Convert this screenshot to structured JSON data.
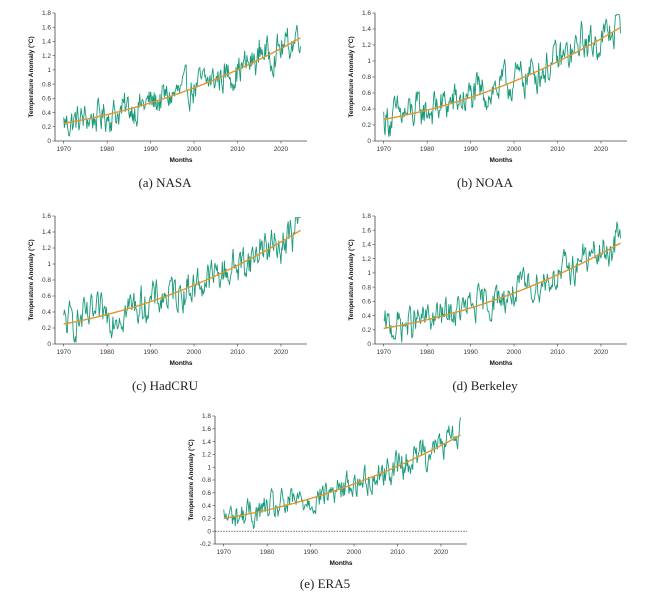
{
  "chart_data": [
    {
      "type": "line",
      "caption": "(a) NASA",
      "xlabel": "Months",
      "ylabel": "Temperature Anomaly (°C)",
      "xlim": [
        1968,
        2026
      ],
      "ylim": [
        0,
        1.8
      ],
      "xticks": [
        "1970",
        "1980",
        "1990",
        "2000",
        "2010",
        "2020"
      ],
      "yticks": [
        "0",
        "0.2",
        "0.4",
        "0.6",
        "0.8",
        "1",
        "1.2",
        "1.4",
        "1.6",
        "1.8"
      ],
      "start_value": 0.25,
      "end_value": 1.45,
      "colors": {
        "data": "#1a9a7a",
        "trend": "#e0962e"
      }
    },
    {
      "type": "line",
      "caption": "(b) NOAA",
      "xlabel": "Months",
      "ylabel": "Temperature Anomaly (°C)",
      "xlim": [
        1968,
        2026
      ],
      "ylim": [
        0,
        1.6
      ],
      "xticks": [
        "1970",
        "1980",
        "1990",
        "2000",
        "2010",
        "2020"
      ],
      "yticks": [
        "0",
        "0.2",
        "0.4",
        "0.6",
        "0.8",
        "1",
        "1.2",
        "1.4",
        "1.6"
      ],
      "start_value": 0.27,
      "end_value": 1.42,
      "colors": {
        "data": "#1a9a7a",
        "trend": "#e0962e"
      }
    },
    {
      "type": "line",
      "caption": "(c) HadCRU",
      "xlabel": "Months",
      "ylabel": "Temperature Anomaly (°C)",
      "xlim": [
        1968,
        2026
      ],
      "ylim": [
        0,
        1.6
      ],
      "xticks": [
        "1970",
        "1980",
        "1990",
        "2000",
        "2010",
        "2020"
      ],
      "yticks": [
        "0",
        "0.2",
        "0.4",
        "0.6",
        "0.8",
        "1",
        "1.2",
        "1.4",
        "1.6"
      ],
      "start_value": 0.25,
      "end_value": 1.42,
      "colors": {
        "data": "#1a9a7a",
        "trend": "#e0962e"
      }
    },
    {
      "type": "line",
      "caption": "(d) Berkeley",
      "xlabel": "Months",
      "ylabel": "Temperature Anomaly (°C)",
      "xlim": [
        1968,
        2026
      ],
      "ylim": [
        0,
        1.8
      ],
      "xticks": [
        "1970",
        "1980",
        "1990",
        "2000",
        "2010",
        "2020"
      ],
      "yticks": [
        "0",
        "0.2",
        "0.4",
        "0.6",
        "0.8",
        "1",
        "1.2",
        "1.4",
        "1.6",
        "1.8"
      ],
      "start_value": 0.22,
      "end_value": 1.42,
      "colors": {
        "data": "#1a9a7a",
        "trend": "#e0962e"
      }
    },
    {
      "type": "line",
      "caption": "(e) ERA5",
      "xlabel": "Months",
      "ylabel": "Temperature Anomaly (°C)",
      "xlim": [
        1968,
        2026
      ],
      "ylim": [
        -0.2,
        1.8
      ],
      "xticks": [
        "1970",
        "1980",
        "1990",
        "2000",
        "2010",
        "2020"
      ],
      "yticks": [
        "-0.2",
        "0",
        "0.2",
        "0.4",
        "0.6",
        "0.8",
        "1",
        "1.2",
        "1.4",
        "1.6",
        "1.8"
      ],
      "start_value": 0.2,
      "end_value": 1.5,
      "zero_line": true,
      "colors": {
        "data": "#1a9a7a",
        "trend": "#e0962e",
        "zero": "#222222"
      }
    }
  ]
}
